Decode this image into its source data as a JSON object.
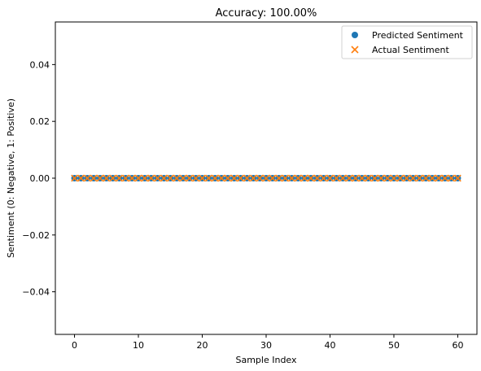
{
  "chart_data": {
    "type": "scatter",
    "title": "Accuracy: 100.00%",
    "xlabel": "Sample Index",
    "ylabel": "Sentiment (0: Negative, 1: Positive)",
    "xlim": [
      -3,
      63
    ],
    "ylim": [
      -0.055,
      0.055
    ],
    "x_ticks": [
      0,
      10,
      20,
      30,
      40,
      50,
      60
    ],
    "x_tick_labels": [
      "0",
      "10",
      "20",
      "30",
      "40",
      "50",
      "60"
    ],
    "y_ticks": [
      -0.04,
      -0.02,
      0.0,
      0.02,
      0.04
    ],
    "y_tick_labels": [
      "−0.04",
      "−0.02",
      "0.00",
      "0.02",
      "0.04"
    ],
    "grid": false,
    "legend_position": "top-right",
    "series": [
      {
        "name": "Predicted Sentiment",
        "marker": "circle",
        "color": "#1f77b4",
        "x": [
          0,
          1,
          2,
          3,
          4,
          5,
          6,
          7,
          8,
          9,
          10,
          11,
          12,
          13,
          14,
          15,
          16,
          17,
          18,
          19,
          20,
          21,
          22,
          23,
          24,
          25,
          26,
          27,
          28,
          29,
          30,
          31,
          32,
          33,
          34,
          35,
          36,
          37,
          38,
          39,
          40,
          41,
          42,
          43,
          44,
          45,
          46,
          47,
          48,
          49,
          50,
          51,
          52,
          53,
          54,
          55,
          56,
          57,
          58,
          59,
          60
        ],
        "y": [
          0,
          0,
          0,
          0,
          0,
          0,
          0,
          0,
          0,
          0,
          0,
          0,
          0,
          0,
          0,
          0,
          0,
          0,
          0,
          0,
          0,
          0,
          0,
          0,
          0,
          0,
          0,
          0,
          0,
          0,
          0,
          0,
          0,
          0,
          0,
          0,
          0,
          0,
          0,
          0,
          0,
          0,
          0,
          0,
          0,
          0,
          0,
          0,
          0,
          0,
          0,
          0,
          0,
          0,
          0,
          0,
          0,
          0,
          0,
          0,
          0
        ]
      },
      {
        "name": "Actual Sentiment",
        "marker": "x",
        "color": "#ff7f0e",
        "x": [
          0,
          1,
          2,
          3,
          4,
          5,
          6,
          7,
          8,
          9,
          10,
          11,
          12,
          13,
          14,
          15,
          16,
          17,
          18,
          19,
          20,
          21,
          22,
          23,
          24,
          25,
          26,
          27,
          28,
          29,
          30,
          31,
          32,
          33,
          34,
          35,
          36,
          37,
          38,
          39,
          40,
          41,
          42,
          43,
          44,
          45,
          46,
          47,
          48,
          49,
          50,
          51,
          52,
          53,
          54,
          55,
          56,
          57,
          58,
          59,
          60
        ],
        "y": [
          0,
          0,
          0,
          0,
          0,
          0,
          0,
          0,
          0,
          0,
          0,
          0,
          0,
          0,
          0,
          0,
          0,
          0,
          0,
          0,
          0,
          0,
          0,
          0,
          0,
          0,
          0,
          0,
          0,
          0,
          0,
          0,
          0,
          0,
          0,
          0,
          0,
          0,
          0,
          0,
          0,
          0,
          0,
          0,
          0,
          0,
          0,
          0,
          0,
          0,
          0,
          0,
          0,
          0,
          0,
          0,
          0,
          0,
          0,
          0,
          0
        ]
      }
    ]
  }
}
